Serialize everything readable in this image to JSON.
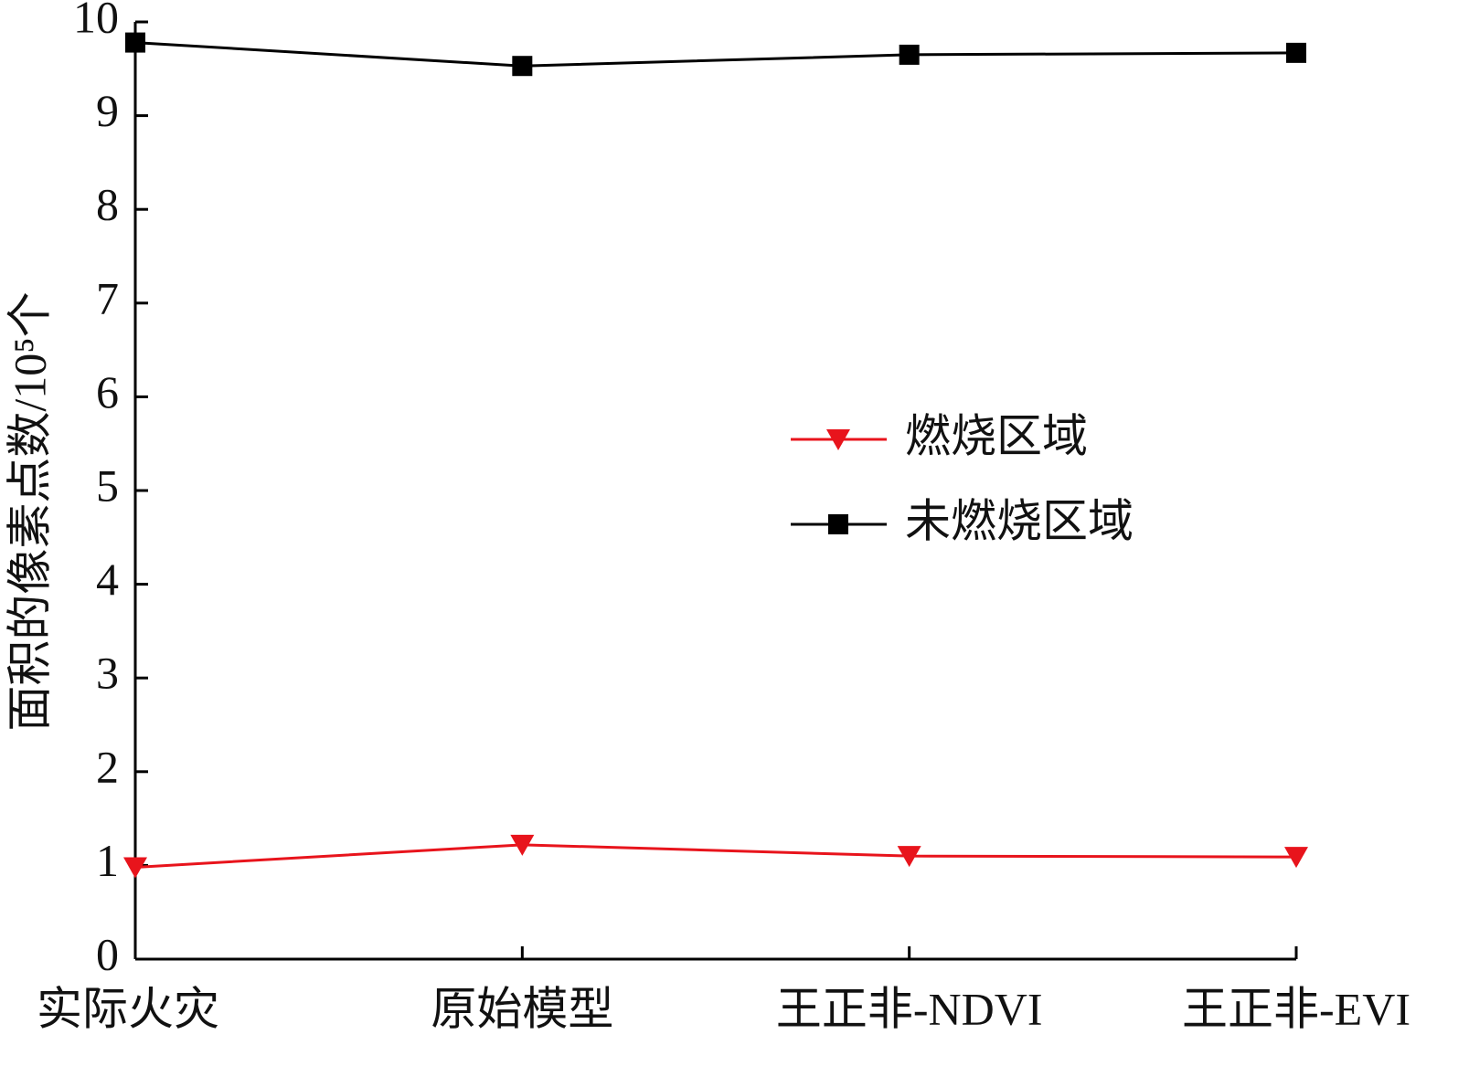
{
  "chart_data": {
    "type": "line",
    "y_label": "面积的像素点数/10⁵个",
    "categories": [
      "实际火灾",
      "原始模型",
      "王正非-NDVI",
      "王正非-EVI"
    ],
    "series": [
      {
        "name": "燃烧区域",
        "color": "#e8141c",
        "marker": "triangle-down",
        "values": [
          0.98,
          1.22,
          1.1,
          1.09
        ]
      },
      {
        "name": "未燃烧区域",
        "color": "#000000",
        "marker": "square",
        "values": [
          9.78,
          9.53,
          9.65,
          9.67
        ]
      }
    ],
    "ylim": [
      0,
      10
    ],
    "yticks": [
      0,
      1,
      2,
      3,
      4,
      5,
      6,
      7,
      8,
      9,
      10
    ],
    "legend": "right",
    "grid": false
  }
}
